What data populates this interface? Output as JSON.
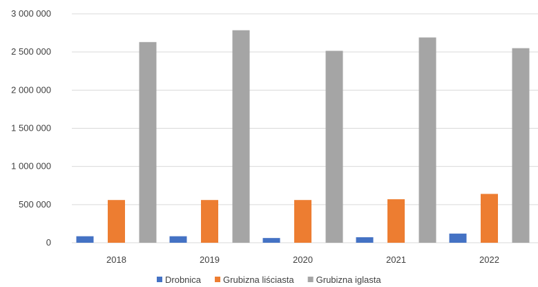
{
  "chart_data": {
    "type": "bar",
    "categories": [
      "2018",
      "2019",
      "2020",
      "2021",
      "2022"
    ],
    "series": [
      {
        "name": "Drobnica",
        "color": "#4472C4",
        "values": [
          85000,
          85000,
          62000,
          72000,
          120000
        ]
      },
      {
        "name": "Grubizna liściasta",
        "color": "#ED7D31",
        "values": [
          560000,
          560000,
          560000,
          570000,
          640000
        ]
      },
      {
        "name": "Grubizna iglasta",
        "color": "#A5A5A5",
        "values": [
          2630000,
          2785000,
          2515000,
          2690000,
          2550000
        ]
      }
    ],
    "y_ticks": [
      "3 000 000",
      "2 500 000",
      "2 000 000",
      "1 500 000",
      "1 000 000",
      "500 000",
      "0"
    ],
    "ylim": [
      0,
      3000000
    ],
    "grid": true,
    "legend_position": "bottom",
    "title": "",
    "xlabel": "",
    "ylabel": ""
  }
}
